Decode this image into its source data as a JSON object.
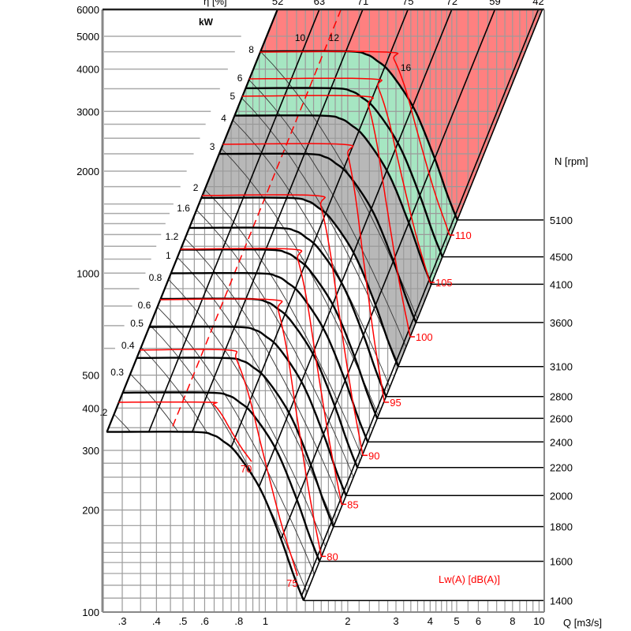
{
  "chart_data": {
    "type": "line",
    "title": "",
    "xlabel": "Q [m3/s]",
    "ylabel": "",
    "x_scale": "log",
    "y_scale": "log",
    "xlim": [
      0.27,
      10.5
    ],
    "ylim": [
      100,
      6000
    ],
    "grid": true,
    "x_ticks": [
      {
        "value": 0.3,
        "label": ".3"
      },
      {
        "value": 0.4,
        "label": ".4"
      },
      {
        "value": 0.5,
        "label": ".5"
      },
      {
        "value": 0.6,
        "label": ".6"
      },
      {
        "value": 0.8,
        "label": ".8"
      },
      {
        "value": 1,
        "label": "1"
      },
      {
        "value": 2,
        "label": "2"
      },
      {
        "value": 3,
        "label": "3"
      },
      {
        "value": 4,
        "label": "4"
      },
      {
        "value": 5,
        "label": "5"
      },
      {
        "value": 6,
        "label": "6"
      },
      {
        "value": 8,
        "label": "8"
      },
      {
        "value": 10,
        "label": "10"
      }
    ],
    "y_ticks": [
      {
        "value": 100,
        "label": "100"
      },
      {
        "value": 200,
        "label": "200"
      },
      {
        "value": 300,
        "label": "300"
      },
      {
        "value": 400,
        "label": "400"
      },
      {
        "value": 500,
        "label": "500"
      },
      {
        "value": 1000,
        "label": "1000"
      },
      {
        "value": 2000,
        "label": "2000"
      },
      {
        "value": 3000,
        "label": "3000"
      },
      {
        "value": 4000,
        "label": "4000"
      },
      {
        "value": 5000,
        "label": "5000"
      },
      {
        "value": 6000,
        "label": "6000"
      }
    ],
    "speed_axis_label": "N [rpm]",
    "power_axis_label": "kW",
    "efficiency_axis_label": "η [%]",
    "noise_legend_label": "Lw(A)  [dB(A)]",
    "base_speed_rpm": 1400,
    "base_shutoff_pressure": 340,
    "base_curve_normalized": [
      [
        0.263,
        1
      ],
      [
        0.545,
        1
      ],
      [
        0.643,
        0.979
      ],
      [
        0.7,
        0.94
      ],
      [
        0.786,
        0.865
      ],
      [
        0.957,
        0.68
      ],
      [
        1.13,
        0.493
      ],
      [
        1.27,
        0.377
      ],
      [
        1.38,
        0.318
      ]
    ],
    "speed_curves": [
      {
        "rpm": 1400,
        "label": "1400"
      },
      {
        "rpm": 1600,
        "label": "1600"
      },
      {
        "rpm": 1800,
        "label": "1800"
      },
      {
        "rpm": 2000,
        "label": "2000"
      },
      {
        "rpm": 2200,
        "label": "2200"
      },
      {
        "rpm": 2400,
        "label": "2400"
      },
      {
        "rpm": 2600,
        "label": "2600"
      },
      {
        "rpm": 2800,
        "label": "2800"
      },
      {
        "rpm": 3100,
        "label": "3100"
      },
      {
        "rpm": 3600,
        "label": "3600"
      },
      {
        "rpm": 4100,
        "label": "4100"
      },
      {
        "rpm": 4500,
        "label": "4500"
      },
      {
        "rpm": 5100,
        "label": "5100"
      }
    ],
    "regions": [
      {
        "name": "forbidden",
        "color": "#ff8080",
        "from_rpm": 5100,
        "to_rpm": null
      },
      {
        "name": "high-speed",
        "color": "#a6e6c2",
        "from_rpm": 4100,
        "to_rpm": 5100
      },
      {
        "name": "mid-speed",
        "color": "#b8b8b8",
        "from_rpm": 3100,
        "to_rpm": 4100
      }
    ],
    "power_lines": [
      {
        "label": ".2",
        "p": 384
      },
      {
        "label": "0.3",
        "p": 505
      },
      {
        "label": "0.4",
        "p": 605
      },
      {
        "label": "0.5",
        "p": 703
      },
      {
        "label": "0.6",
        "p": 796
      },
      {
        "label": "0.8",
        "p": 959
      },
      {
        "label": "1",
        "p": 1115
      },
      {
        "label": "1.2",
        "p": 1268
      },
      {
        "label": "1.6",
        "p": 1538
      },
      {
        "label": "2",
        "p": 1768
      },
      {
        "label": "3",
        "p": 2336
      },
      {
        "label": "4",
        "p": 2833
      },
      {
        "label": "5",
        "p": 3290
      },
      {
        "label": "6",
        "p": 3722
      },
      {
        "label": "8",
        "p": 4512
      }
    ],
    "power_labels_inner": [
      {
        "label": "10",
        "q": 1.34,
        "p": 4840
      },
      {
        "label": "12",
        "q": 1.78,
        "p": 4840
      },
      {
        "label": "16",
        "q": 3.26,
        "p": 3948
      }
    ],
    "efficiency_lines": [
      {
        "label": "52",
        "q_at_6000": 1.11
      },
      {
        "label": "63",
        "q_at_6000": 1.575
      },
      {
        "label": "71",
        "q_at_6000": 2.27
      },
      {
        "label": "75",
        "q_at_6000": 3.32
      },
      {
        "label": "72",
        "q_at_6000": 4.8
      },
      {
        "label": "59",
        "q_at_6000": 6.9
      },
      {
        "label": "42",
        "q_at_6000": 9.94
      }
    ],
    "optimum_line_q_at_6000": 1.89,
    "noise_curves": [
      {
        "label": "70",
        "p0": 416,
        "q_knee": 0.62,
        "q_end": 0.89,
        "p_end": 278,
        "label_side": "below"
      },
      {
        "label": "75",
        "p0": 593,
        "q_knee": 0.73,
        "q_end": 1.31,
        "p_end": 128,
        "label_side": "below"
      },
      {
        "label": "80",
        "p0": 835,
        "q_knee": 1.06,
        "q_end": 1.6,
        "p_end": 146,
        "label_side": "right"
      },
      {
        "label": "85",
        "p0": 1177,
        "q_knee": 1.25,
        "q_end": 1.9,
        "p_end": 208,
        "label_side": "right"
      },
      {
        "label": "90",
        "p0": 1694,
        "q_knee": 1.52,
        "q_end": 2.27,
        "p_end": 290,
        "label_side": "right"
      },
      {
        "label": "95",
        "p0": 2399,
        "q_knee": 1.92,
        "q_end": 2.72,
        "p_end": 416,
        "label_side": "right"
      },
      {
        "label": "100",
        "p0": 3327,
        "q_knee": 2.27,
        "q_end": 3.38,
        "p_end": 649,
        "label_side": "right"
      },
      {
        "label": "105",
        "p0": 3743,
        "q_knee": 2.43,
        "q_end": 3.99,
        "p_end": 939,
        "label_side": "right"
      },
      {
        "label": "110",
        "p0": 4490,
        "q_knee": 2.77,
        "q_end": 4.71,
        "p_end": 1295,
        "label_side": "right"
      }
    ],
    "colors": {
      "noise": "#ff0000",
      "curve": "#000000",
      "grid": "#9a9a9a"
    }
  }
}
